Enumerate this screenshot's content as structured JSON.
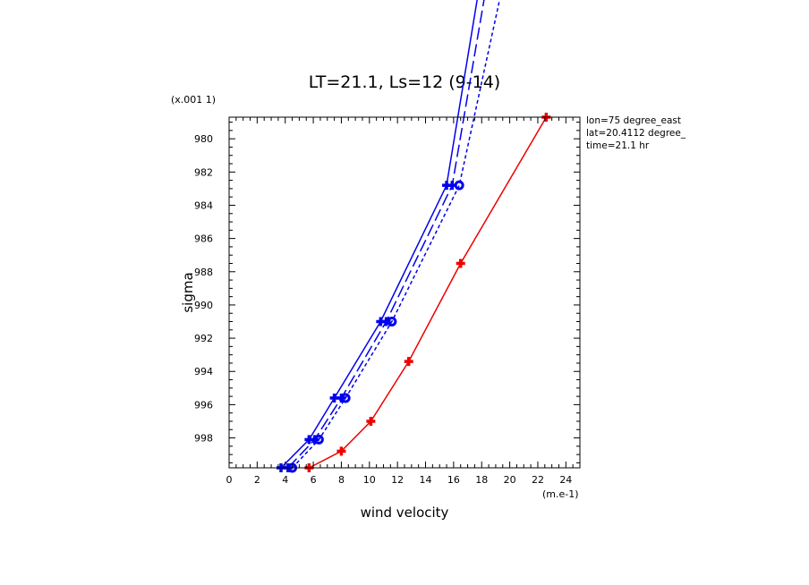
{
  "chart_data": {
    "type": "line",
    "title": "LT=21.1, Ls=12 (9-14)",
    "xlabel": "wind velocity",
    "ylabel": "sigma",
    "x_scale_label": "(m.e-1)",
    "y_scale_label": "(x.001 1)",
    "xlim": [
      0,
      25
    ],
    "ylim": [
      999.8,
      978.7
    ],
    "y_inverted": true,
    "x_ticks": [
      0,
      2,
      4,
      6,
      8,
      10,
      12,
      14,
      16,
      18,
      20,
      22,
      24
    ],
    "y_ticks": [
      980,
      982,
      984,
      986,
      988,
      990,
      992,
      994,
      996,
      998
    ],
    "grid": false,
    "info_lines": [
      "lon=75 degree_east",
      "lat=20.4112 degree_",
      "time=21.1 hr"
    ],
    "colors": {
      "blue": "#0000ee",
      "red": "#ee0000"
    },
    "series": [
      {
        "style": "solid",
        "color": "blue",
        "x": [
          3.7,
          5.7,
          7.5,
          10.8,
          15.5,
          18.0
        ],
        "y": [
          999.8,
          998.1,
          995.6,
          991.0,
          982.8,
          970.0
        ]
      },
      {
        "style": "long-dash",
        "color": "blue",
        "x": [
          4.2,
          6.1,
          8.0,
          11.2,
          15.9,
          18.5
        ],
        "y": [
          999.8,
          998.1,
          995.6,
          991.0,
          982.8,
          970.0
        ]
      },
      {
        "style": "short-dash",
        "color": "blue",
        "x": [
          4.5,
          6.4,
          8.3,
          11.6,
          16.4,
          19.7
        ],
        "y": [
          999.8,
          998.1,
          995.6,
          991.0,
          982.8,
          970.0
        ]
      },
      {
        "style": "solid",
        "color": "red",
        "x": [
          5.7,
          8.0,
          10.1,
          12.8,
          16.5,
          22.6
        ],
        "y": [
          999.8,
          998.8,
          997.0,
          993.4,
          987.5,
          978.7
        ]
      }
    ]
  }
}
